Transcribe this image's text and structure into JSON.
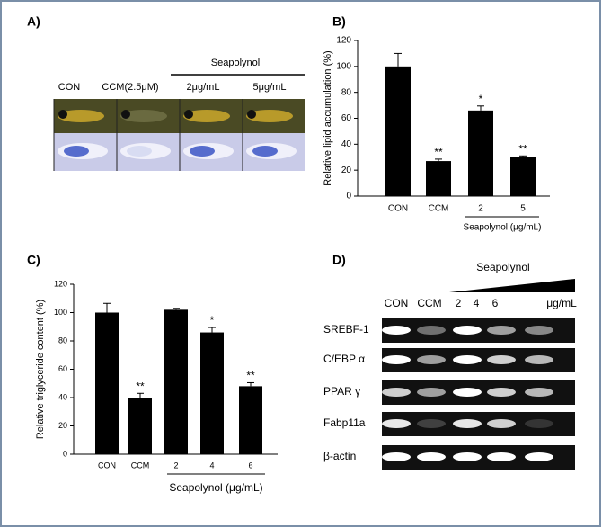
{
  "panel_a": {
    "label": "A)",
    "group": "Seapolynol",
    "columns": [
      "CON",
      "CCM(2.5μM)",
      "2μg/mL",
      "5μg/mL"
    ]
  },
  "chart_data": [
    {
      "type": "bar",
      "label": "B)",
      "y_label": "Relative lipid accumulation (%)",
      "categories": [
        "CON",
        "CCM",
        "2",
        "5"
      ],
      "values": [
        100,
        27,
        66,
        30
      ],
      "errors": [
        10,
        1.5,
        3.5,
        1
      ],
      "annotations": [
        null,
        "**",
        "*",
        "**"
      ],
      "group_label": "Seapolynol (μg/mL)",
      "group_start": 2,
      "color": "#000000",
      "ylim": [
        0,
        120
      ],
      "yticks": [
        0,
        20,
        40,
        60,
        80,
        100,
        120
      ]
    },
    {
      "type": "bar",
      "label": "C)",
      "y_label": "Relative triglyceride content (%)",
      "categories": [
        "CON",
        "CCM",
        "2",
        "4",
        "6"
      ],
      "values": [
        100,
        40,
        102,
        86,
        48
      ],
      "errors": [
        6.5,
        3,
        1,
        3.5,
        2.5
      ],
      "annotations": [
        null,
        "**",
        null,
        "*",
        "**"
      ],
      "group_label": "Seapolynol (μg/mL)",
      "group_start": 2,
      "color": "#000000",
      "ylim": [
        0,
        120
      ],
      "yticks": [
        0,
        20,
        40,
        60,
        80,
        100,
        120
      ]
    }
  ],
  "panel_d": {
    "label": "D)",
    "group": "Seapolynol",
    "lanes": [
      "CON",
      "CCM",
      "2",
      "4",
      "6"
    ],
    "unit": "μg/mL",
    "genes": [
      "SREBF-1",
      "C/EBP α",
      "PPAR γ",
      "Fabp11a",
      "β-actin"
    ]
  }
}
